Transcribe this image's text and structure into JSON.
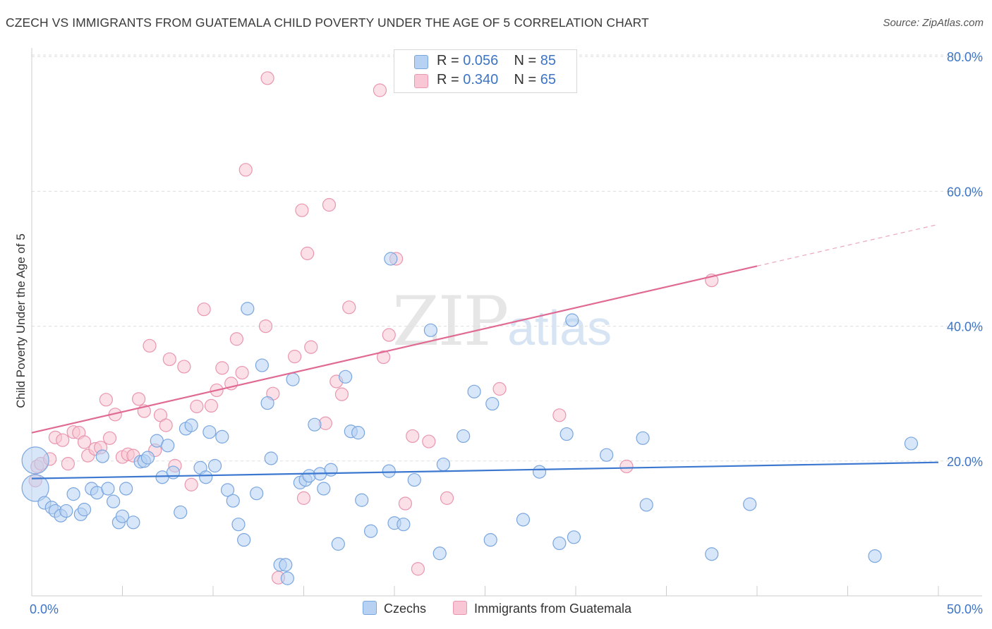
{
  "title": "CZECH VS IMMIGRANTS FROM GUATEMALA CHILD POVERTY UNDER THE AGE OF 5 CORRELATION CHART",
  "source": "Source: ZipAtlas.com",
  "watermark": {
    "zip": "ZIP",
    "atlas": "atlas"
  },
  "legend": {
    "czechs": {
      "r_label": "R = ",
      "r_value": "0.056",
      "n_label": "N = ",
      "n_value": "85"
    },
    "guatemala": {
      "r_label": "R = ",
      "r_value": "0.340",
      "n_label": "N = ",
      "n_value": "65"
    }
  },
  "colors": {
    "czechs_fill": "#b7d1f2",
    "czechs_stroke": "#7aa6df",
    "czechs_line": "#3c78d0",
    "guatemala_fill": "#f8c6d4",
    "guatemala_stroke": "#e996ae",
    "guatemala_line": "#e06a93",
    "tick_label": "#3d74c5",
    "grid": "#dedede"
  },
  "chart_data": {
    "type": "scatter",
    "title": "CZECH VS IMMIGRANTS FROM GUATEMALA CHILD POVERTY UNDER THE AGE OF 5 CORRELATION CHART",
    "xlabel": "",
    "ylabel": "Child Poverty Under the Age of 5",
    "xlim": [
      0,
      50
    ],
    "ylim": [
      0,
      84
    ],
    "x_tick_labels": [
      "0.0%",
      "50.0%"
    ],
    "y_ticks": [
      20,
      40,
      60,
      80
    ],
    "y_tick_labels": [
      "20.0%",
      "40.0%",
      "60.0%",
      "80.0%"
    ],
    "grid": true,
    "legend_position": "top-center",
    "series": [
      {
        "name": "Czechs",
        "r": 0.056,
        "n": 85,
        "trend": {
          "x": [
            0,
            50
          ],
          "y": [
            17.4,
            19.8
          ],
          "solid_to": 50
        },
        "points": [
          [
            0.2,
            20.1,
            "L"
          ],
          [
            0.2,
            16.0,
            "L"
          ],
          [
            0.7,
            13.8
          ],
          [
            1.1,
            13.1
          ],
          [
            1.3,
            12.6
          ],
          [
            1.6,
            11.9
          ],
          [
            1.9,
            12.6
          ],
          [
            2.3,
            15.1
          ],
          [
            2.7,
            12.1
          ],
          [
            2.9,
            12.8
          ],
          [
            3.3,
            15.9
          ],
          [
            3.6,
            15.3
          ],
          [
            3.9,
            20.7
          ],
          [
            4.2,
            15.9
          ],
          [
            4.5,
            14.0
          ],
          [
            4.8,
            10.9
          ],
          [
            5.0,
            11.8
          ],
          [
            5.2,
            15.9
          ],
          [
            5.6,
            10.9
          ],
          [
            6.0,
            19.9
          ],
          [
            6.2,
            20.0
          ],
          [
            6.4,
            20.5
          ],
          [
            6.9,
            23.0
          ],
          [
            7.2,
            17.6
          ],
          [
            7.5,
            22.3
          ],
          [
            7.8,
            18.3
          ],
          [
            8.2,
            12.4
          ],
          [
            8.5,
            24.8
          ],
          [
            8.8,
            25.3
          ],
          [
            9.3,
            19.0
          ],
          [
            9.6,
            17.6
          ],
          [
            9.8,
            24.3
          ],
          [
            10.1,
            19.3
          ],
          [
            10.5,
            23.6
          ],
          [
            10.8,
            15.7
          ],
          [
            11.1,
            14.1
          ],
          [
            11.4,
            10.6
          ],
          [
            11.7,
            8.3
          ],
          [
            11.9,
            42.6
          ],
          [
            12.4,
            15.2
          ],
          [
            12.7,
            34.2
          ],
          [
            13.0,
            28.6
          ],
          [
            13.2,
            20.4
          ],
          [
            13.7,
            4.6
          ],
          [
            14.0,
            4.6
          ],
          [
            14.1,
            2.6
          ],
          [
            14.4,
            32.1
          ],
          [
            14.8,
            16.8
          ],
          [
            15.1,
            17.2
          ],
          [
            15.3,
            17.8
          ],
          [
            15.6,
            25.4
          ],
          [
            15.9,
            18.1
          ],
          [
            16.1,
            15.9
          ],
          [
            16.5,
            18.7
          ],
          [
            16.9,
            7.7
          ],
          [
            17.3,
            32.5
          ],
          [
            17.6,
            24.4
          ],
          [
            18.0,
            24.2
          ],
          [
            18.2,
            14.2
          ],
          [
            18.7,
            9.6
          ],
          [
            19.7,
            18.5
          ],
          [
            19.8,
            50.0
          ],
          [
            20.0,
            10.8
          ],
          [
            20.5,
            10.6
          ],
          [
            21.1,
            17.2
          ],
          [
            22.5,
            6.3
          ],
          [
            22.7,
            19.5
          ],
          [
            23.8,
            23.7
          ],
          [
            24.4,
            30.3
          ],
          [
            25.4,
            28.5
          ],
          [
            25.3,
            8.3
          ],
          [
            27.1,
            11.3
          ],
          [
            28.0,
            18.4
          ],
          [
            29.1,
            7.8
          ],
          [
            29.5,
            24.0
          ],
          [
            29.8,
            40.9
          ],
          [
            29.9,
            8.7
          ],
          [
            31.7,
            20.9
          ],
          [
            33.7,
            23.4
          ],
          [
            33.9,
            13.5
          ],
          [
            37.5,
            6.2
          ],
          [
            39.6,
            13.6
          ],
          [
            46.5,
            5.9
          ],
          [
            48.5,
            22.6
          ],
          [
            22.0,
            39.4
          ]
        ]
      },
      {
        "name": "Immigrants from Guatemala",
        "r": 0.34,
        "n": 65,
        "trend": {
          "x": [
            0,
            50
          ],
          "y": [
            24.2,
            55.1
          ],
          "solid_to": 40
        },
        "points": [
          [
            0.2,
            17.1
          ],
          [
            0.3,
            19.2
          ],
          [
            0.5,
            19.6
          ],
          [
            1.0,
            20.3
          ],
          [
            1.3,
            23.5
          ],
          [
            1.7,
            23.1
          ],
          [
            2.0,
            19.6
          ],
          [
            2.3,
            24.3
          ],
          [
            2.6,
            24.2
          ],
          [
            2.9,
            22.8
          ],
          [
            3.1,
            20.8
          ],
          [
            3.5,
            21.8
          ],
          [
            3.8,
            22.0
          ],
          [
            4.1,
            29.1
          ],
          [
            4.3,
            23.4
          ],
          [
            4.6,
            26.9
          ],
          [
            5.0,
            20.6
          ],
          [
            5.3,
            21.0
          ],
          [
            5.6,
            20.8
          ],
          [
            5.9,
            29.2
          ],
          [
            6.2,
            27.4
          ],
          [
            6.5,
            37.1
          ],
          [
            6.8,
            21.6
          ],
          [
            7.1,
            26.8
          ],
          [
            7.4,
            25.3
          ],
          [
            7.6,
            35.1
          ],
          [
            7.9,
            19.3
          ],
          [
            8.4,
            34.0
          ],
          [
            8.8,
            16.5
          ],
          [
            9.1,
            28.1
          ],
          [
            9.5,
            42.5
          ],
          [
            9.9,
            28.2
          ],
          [
            10.2,
            30.5
          ],
          [
            10.5,
            33.8
          ],
          [
            11.0,
            31.5
          ],
          [
            11.3,
            38.1
          ],
          [
            11.6,
            33.1
          ],
          [
            11.8,
            63.2
          ],
          [
            12.9,
            40.0
          ],
          [
            13.0,
            76.8
          ],
          [
            13.3,
            30.0
          ],
          [
            13.6,
            2.7
          ],
          [
            14.5,
            35.5
          ],
          [
            14.9,
            57.2
          ],
          [
            15.0,
            14.5
          ],
          [
            15.2,
            50.8
          ],
          [
            15.4,
            36.9
          ],
          [
            16.2,
            25.6
          ],
          [
            16.4,
            58.0
          ],
          [
            16.8,
            31.8
          ],
          [
            17.1,
            29.9
          ],
          [
            17.5,
            42.8
          ],
          [
            19.2,
            75.0
          ],
          [
            19.4,
            35.4
          ],
          [
            19.7,
            38.7
          ],
          [
            20.1,
            50.0
          ],
          [
            20.6,
            13.7
          ],
          [
            21.0,
            23.7
          ],
          [
            21.9,
            22.9
          ],
          [
            22.9,
            14.5
          ],
          [
            25.8,
            30.7
          ],
          [
            29.1,
            26.8
          ],
          [
            32.8,
            19.2
          ],
          [
            37.5,
            46.8
          ],
          [
            21.3,
            4.0
          ]
        ]
      }
    ]
  }
}
